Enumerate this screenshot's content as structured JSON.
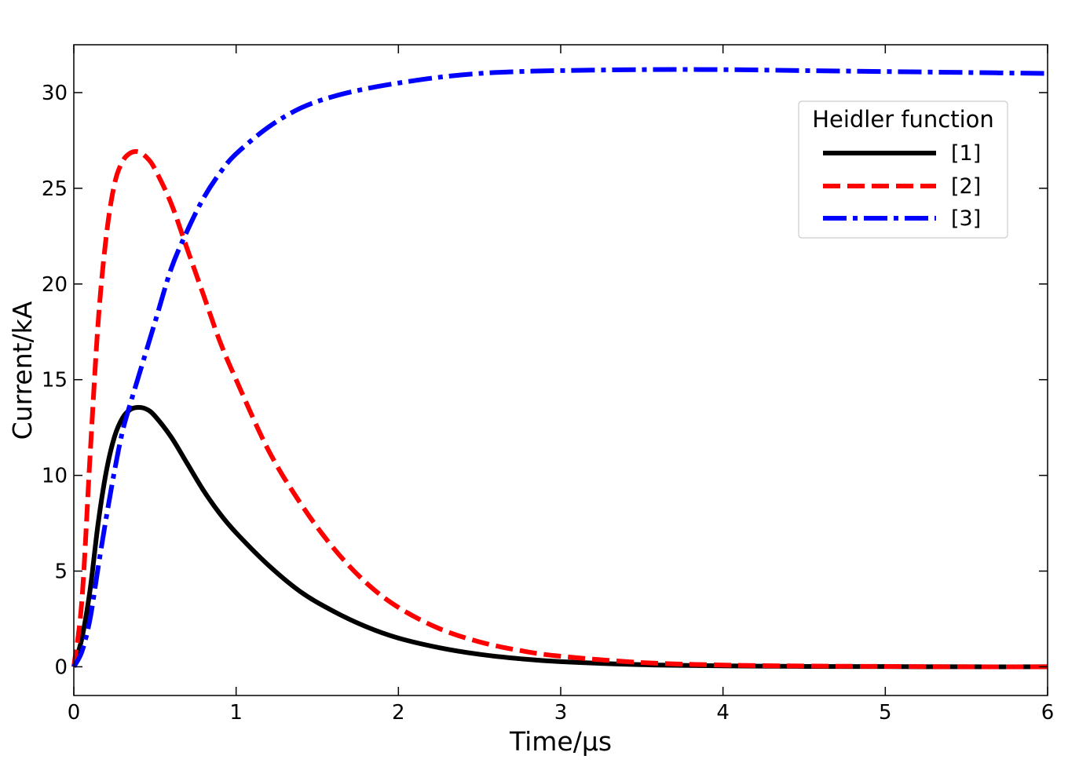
{
  "chart_data": {
    "type": "line",
    "xlabel": "Time/μs",
    "ylabel": "Current/kA",
    "xlim": [
      0,
      6
    ],
    "ylim": [
      -1.5,
      32.5
    ],
    "x_ticks": [
      0,
      1,
      2,
      3,
      4,
      5,
      6
    ],
    "x_tick_labels": [
      "0",
      "1",
      "2",
      "3",
      "4",
      "5",
      "6"
    ],
    "y_ticks": [
      0,
      5,
      10,
      15,
      20,
      25,
      30
    ],
    "y_tick_labels": [
      "0",
      "5",
      "10",
      "15",
      "20",
      "25",
      "30"
    ],
    "grid": false,
    "legend": {
      "title": "Heidler function",
      "placement": "top-right"
    },
    "series": [
      {
        "name": "[1]",
        "color": "#000000",
        "style": "solid",
        "x": [
          0,
          0.05,
          0.1,
          0.15,
          0.2,
          0.25,
          0.3,
          0.35,
          0.4,
          0.45,
          0.5,
          0.6,
          0.7,
          0.8,
          0.9,
          1.0,
          1.2,
          1.4,
          1.6,
          1.8,
          2.0,
          2.25,
          2.5,
          2.75,
          3.0,
          3.5,
          4.0,
          4.5,
          5.0,
          5.5,
          6.0
        ],
        "y": [
          0,
          1.5,
          4.0,
          7.5,
          10.2,
          12.0,
          13.0,
          13.45,
          13.55,
          13.45,
          13.1,
          12.0,
          10.6,
          9.2,
          8.0,
          7.0,
          5.3,
          3.9,
          2.9,
          2.1,
          1.5,
          1.0,
          0.65,
          0.42,
          0.27,
          0.11,
          0.05,
          0.02,
          0.01,
          0.0,
          0.0
        ]
      },
      {
        "name": "[2]",
        "color": "#ff0000",
        "style": "dashed",
        "x": [
          0,
          0.05,
          0.1,
          0.15,
          0.2,
          0.25,
          0.3,
          0.35,
          0.4,
          0.45,
          0.5,
          0.6,
          0.7,
          0.8,
          0.9,
          1.0,
          1.2,
          1.4,
          1.6,
          1.8,
          2.0,
          2.25,
          2.5,
          2.75,
          3.0,
          3.5,
          4.0,
          4.5,
          5.0,
          5.5,
          6.0
        ],
        "y": [
          0,
          3.5,
          11.0,
          18.0,
          22.5,
          25.2,
          26.4,
          26.85,
          26.9,
          26.6,
          26.0,
          24.2,
          21.8,
          19.4,
          17.0,
          15.0,
          11.3,
          8.5,
          6.2,
          4.4,
          3.1,
          2.0,
          1.3,
          0.85,
          0.55,
          0.22,
          0.09,
          0.04,
          0.02,
          0.0,
          0.0
        ]
      },
      {
        "name": "[3]",
        "color": "#0000ff",
        "style": "dashdot",
        "x": [
          0,
          0.05,
          0.1,
          0.15,
          0.2,
          0.25,
          0.3,
          0.35,
          0.4,
          0.5,
          0.6,
          0.7,
          0.8,
          0.9,
          1.0,
          1.2,
          1.4,
          1.6,
          1.8,
          2.0,
          2.25,
          2.5,
          2.75,
          3.0,
          3.5,
          4.0,
          4.5,
          5.0,
          5.5,
          6.0
        ],
        "y": [
          0,
          0.8,
          2.5,
          5.2,
          7.8,
          10.2,
          12.3,
          13.8,
          15.2,
          18.0,
          20.8,
          22.8,
          24.5,
          25.8,
          26.8,
          28.2,
          29.2,
          29.8,
          30.2,
          30.5,
          30.8,
          31.0,
          31.1,
          31.15,
          31.2,
          31.2,
          31.15,
          31.1,
          31.05,
          31.0
        ]
      }
    ]
  }
}
